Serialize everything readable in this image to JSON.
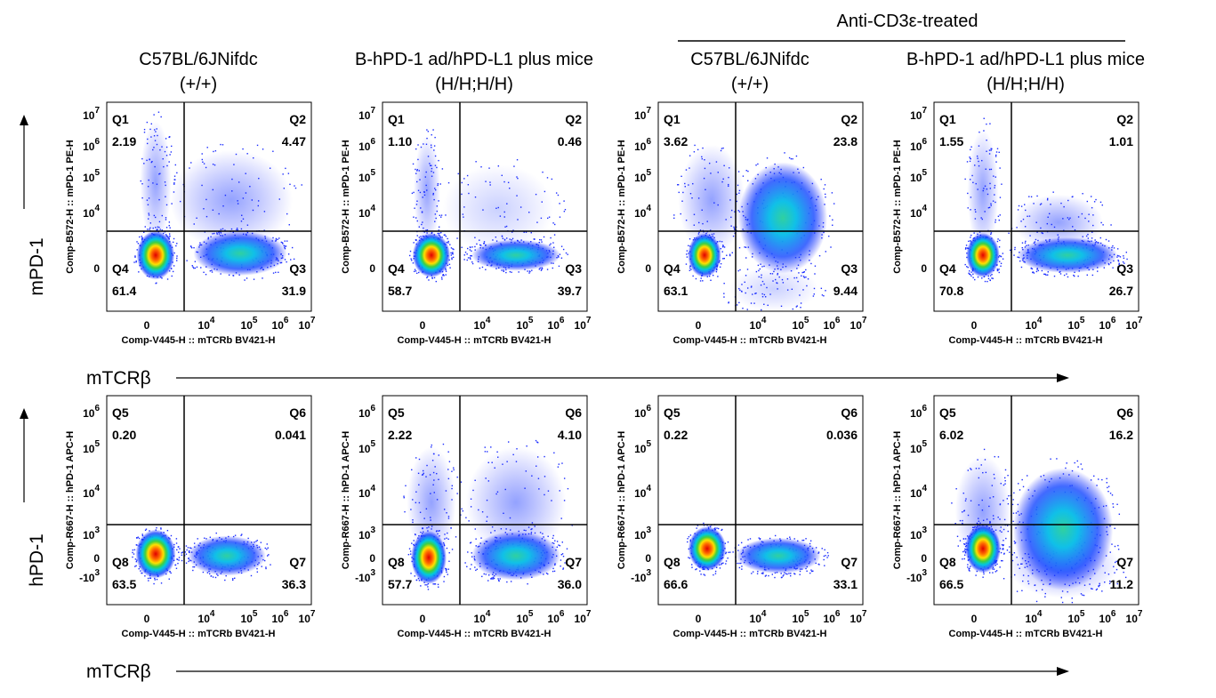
{
  "header": {
    "group_title": "Anti-CD3ε-treated"
  },
  "columns": [
    {
      "line1": "C57BL/6JNifdc",
      "line2": "(+/+)"
    },
    {
      "line1": "B-hPD-1 ad/hPD-L1 plus mice",
      "line2": "(H/H;H/H)"
    },
    {
      "line1": "C57BL/6JNifdc",
      "line2": "(+/+)"
    },
    {
      "line1": "B-hPD-1 ad/hPD-L1 plus mice",
      "line2": "(H/H;H/H)"
    }
  ],
  "x_ticks": [
    {
      "base": "0"
    },
    {
      "base": "10",
      "exp": "4"
    },
    {
      "base": "10",
      "exp": "5"
    },
    {
      "base": "10",
      "exp": "6"
    },
    {
      "base": "10",
      "exp": "7"
    }
  ],
  "rows": [
    {
      "y_title": "mPD-1",
      "x_title": "mTCRβ",
      "y_label": "Comp-B572-H :: mPD-1 PE-H",
      "x_label": "Comp-V445-H :: mTCRb BV421-H",
      "y_ticks": [
        {
          "base": "10",
          "exp": "7"
        },
        {
          "base": "10",
          "exp": "6"
        },
        {
          "base": "10",
          "exp": "5"
        },
        {
          "base": "10",
          "exp": "4"
        },
        {
          "base": "0"
        }
      ],
      "panels": [
        {
          "quadrants": [
            {
              "name": "Q1",
              "value": "2.19"
            },
            {
              "name": "Q2",
              "value": "4.47"
            },
            {
              "name": "Q3",
              "value": "31.9"
            },
            {
              "name": "Q4",
              "value": "61.4"
            }
          ]
        },
        {
          "quadrants": [
            {
              "name": "Q1",
              "value": "1.10"
            },
            {
              "name": "Q2",
              "value": "0.46"
            },
            {
              "name": "Q3",
              "value": "39.7"
            },
            {
              "name": "Q4",
              "value": "58.7"
            }
          ]
        },
        {
          "quadrants": [
            {
              "name": "Q1",
              "value": "3.62"
            },
            {
              "name": "Q2",
              "value": "23.8"
            },
            {
              "name": "Q3",
              "value": "9.44"
            },
            {
              "name": "Q4",
              "value": "63.1"
            }
          ]
        },
        {
          "quadrants": [
            {
              "name": "Q1",
              "value": "1.55"
            },
            {
              "name": "Q2",
              "value": "1.01"
            },
            {
              "name": "Q3",
              "value": "26.7"
            },
            {
              "name": "Q4",
              "value": "70.8"
            }
          ]
        }
      ]
    },
    {
      "y_title": "hPD-1",
      "x_title": "mTCRβ",
      "y_label": "Comp-R667-H :: hPD-1 APC-H",
      "x_label": "Comp-V445-H :: mTCRb BV421-H",
      "y_ticks": [
        {
          "base": "10",
          "exp": "6"
        },
        {
          "base": "10",
          "exp": "5"
        },
        {
          "base": "10",
          "exp": "4"
        },
        {
          "base": "10",
          "exp": "3"
        },
        {
          "base": "0"
        },
        {
          "base": "-10",
          "exp": "3"
        }
      ],
      "panels": [
        {
          "quadrants": [
            {
              "name": "Q5",
              "value": "0.20"
            },
            {
              "name": "Q6",
              "value": "0.041"
            },
            {
              "name": "Q7",
              "value": "36.3"
            },
            {
              "name": "Q8",
              "value": "63.5"
            }
          ]
        },
        {
          "quadrants": [
            {
              "name": "Q5",
              "value": "2.22"
            },
            {
              "name": "Q6",
              "value": "4.10"
            },
            {
              "name": "Q7",
              "value": "36.0"
            },
            {
              "name": "Q8",
              "value": "57.7"
            }
          ]
        },
        {
          "quadrants": [
            {
              "name": "Q5",
              "value": "0.22"
            },
            {
              "name": "Q6",
              "value": "0.036"
            },
            {
              "name": "Q7",
              "value": "33.1"
            },
            {
              "name": "Q8",
              "value": "66.6"
            }
          ]
        },
        {
          "quadrants": [
            {
              "name": "Q5",
              "value": "6.02"
            },
            {
              "name": "Q6",
              "value": "16.2"
            },
            {
              "name": "Q7",
              "value": "11.2"
            },
            {
              "name": "Q8",
              "value": "66.5"
            }
          ]
        }
      ]
    }
  ]
}
